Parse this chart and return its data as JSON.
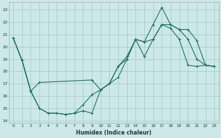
{
  "xlabel": "Humidex (Indice chaleur)",
  "bg_color": "#cce8e8",
  "grid_color": "#aacccc",
  "line_color": "#1a7060",
  "xlim": [
    -0.5,
    23.5
  ],
  "ylim": [
    13.8,
    23.6
  ],
  "yticks": [
    14,
    15,
    16,
    17,
    18,
    19,
    20,
    21,
    22,
    23
  ],
  "xticks": [
    0,
    1,
    2,
    3,
    4,
    5,
    6,
    7,
    8,
    9,
    10,
    11,
    12,
    13,
    14,
    15,
    16,
    17,
    18,
    19,
    20,
    21,
    22,
    23
  ],
  "series1_x": [
    0,
    1,
    2,
    3,
    4,
    5,
    6,
    7,
    8,
    9,
    10,
    11,
    12,
    13,
    14,
    15,
    16,
    17,
    18,
    19,
    20,
    21,
    22,
    23
  ],
  "series1_y": [
    20.7,
    18.9,
    16.4,
    15.0,
    14.6,
    14.6,
    14.5,
    14.6,
    14.8,
    14.6,
    16.5,
    17.0,
    17.5,
    19.0,
    20.6,
    20.4,
    20.6,
    21.8,
    21.8,
    21.4,
    20.6,
    19.0,
    18.5,
    18.4
  ],
  "series2_x": [
    0,
    1,
    2,
    3,
    9,
    10,
    11,
    12,
    13,
    14,
    15,
    16,
    17,
    18,
    19,
    20,
    21,
    22,
    23
  ],
  "series2_y": [
    20.7,
    18.9,
    16.4,
    17.1,
    17.3,
    16.5,
    17.0,
    18.4,
    19.0,
    20.6,
    20.4,
    21.8,
    23.2,
    21.8,
    21.4,
    21.4,
    20.5,
    18.5,
    18.4
  ],
  "series3_x": [
    0,
    1,
    2,
    3,
    4,
    5,
    6,
    7,
    8,
    9,
    10,
    11,
    12,
    13,
    14,
    15,
    16,
    17,
    18,
    19,
    20,
    21,
    22,
    23
  ],
  "series3_y": [
    20.7,
    18.9,
    16.4,
    15.0,
    14.6,
    14.6,
    14.5,
    14.6,
    15.3,
    16.1,
    16.5,
    17.0,
    18.4,
    19.2,
    20.6,
    19.2,
    20.6,
    21.8,
    21.5,
    20.6,
    18.5,
    18.4,
    18.5,
    18.4
  ]
}
